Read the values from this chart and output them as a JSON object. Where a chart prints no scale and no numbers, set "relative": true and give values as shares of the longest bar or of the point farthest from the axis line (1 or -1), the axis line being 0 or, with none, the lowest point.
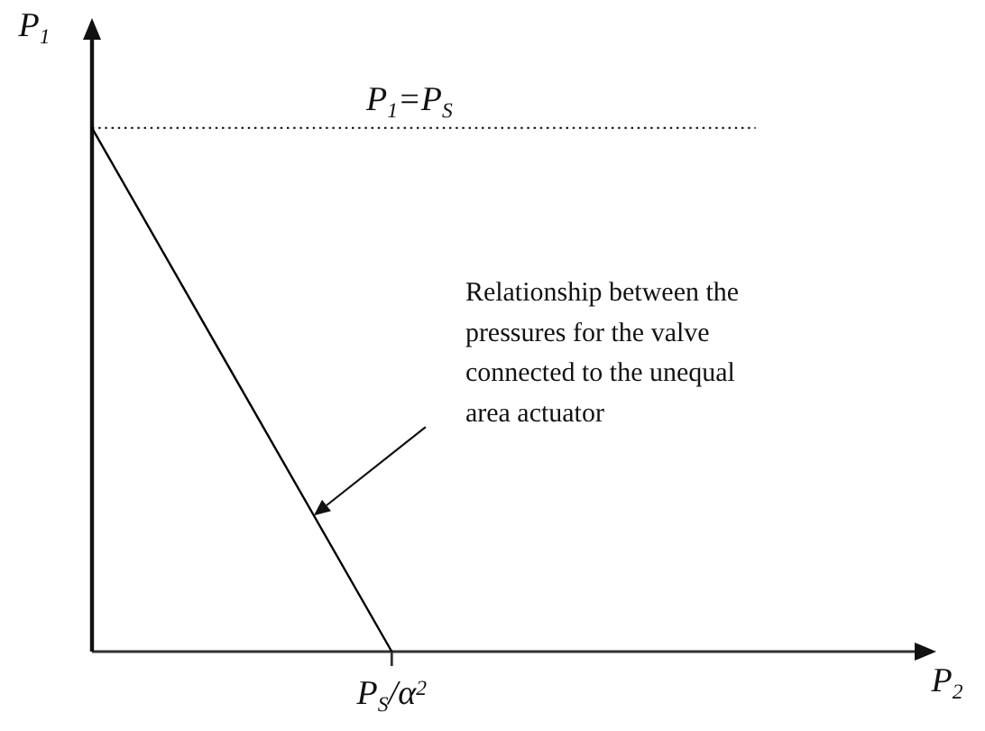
{
  "chart_data": {
    "type": "line",
    "relative": true,
    "categories": [
      null,
      null
    ],
    "series": [
      {
        "color": "#000000",
        "values": [
          1,
          0
        ]
      }
    ],
    "ylabel": "P$_{1}$",
    "ref_lines": [
      {
        "axis": "y",
        "value": 1,
        "label": "P$_{1}$=P$_{S}$",
        "line_style": "dotted",
        "color": "#000000"
      }
    ],
    "annotations": [
      "Relationship between the pressures for the valve connected to the unequal area actuator",
      {
        "text": "P$_{S}$/α$^{2}$",
        "y": 0
      },
      "P$_{2}$"
    ]
  }
}
